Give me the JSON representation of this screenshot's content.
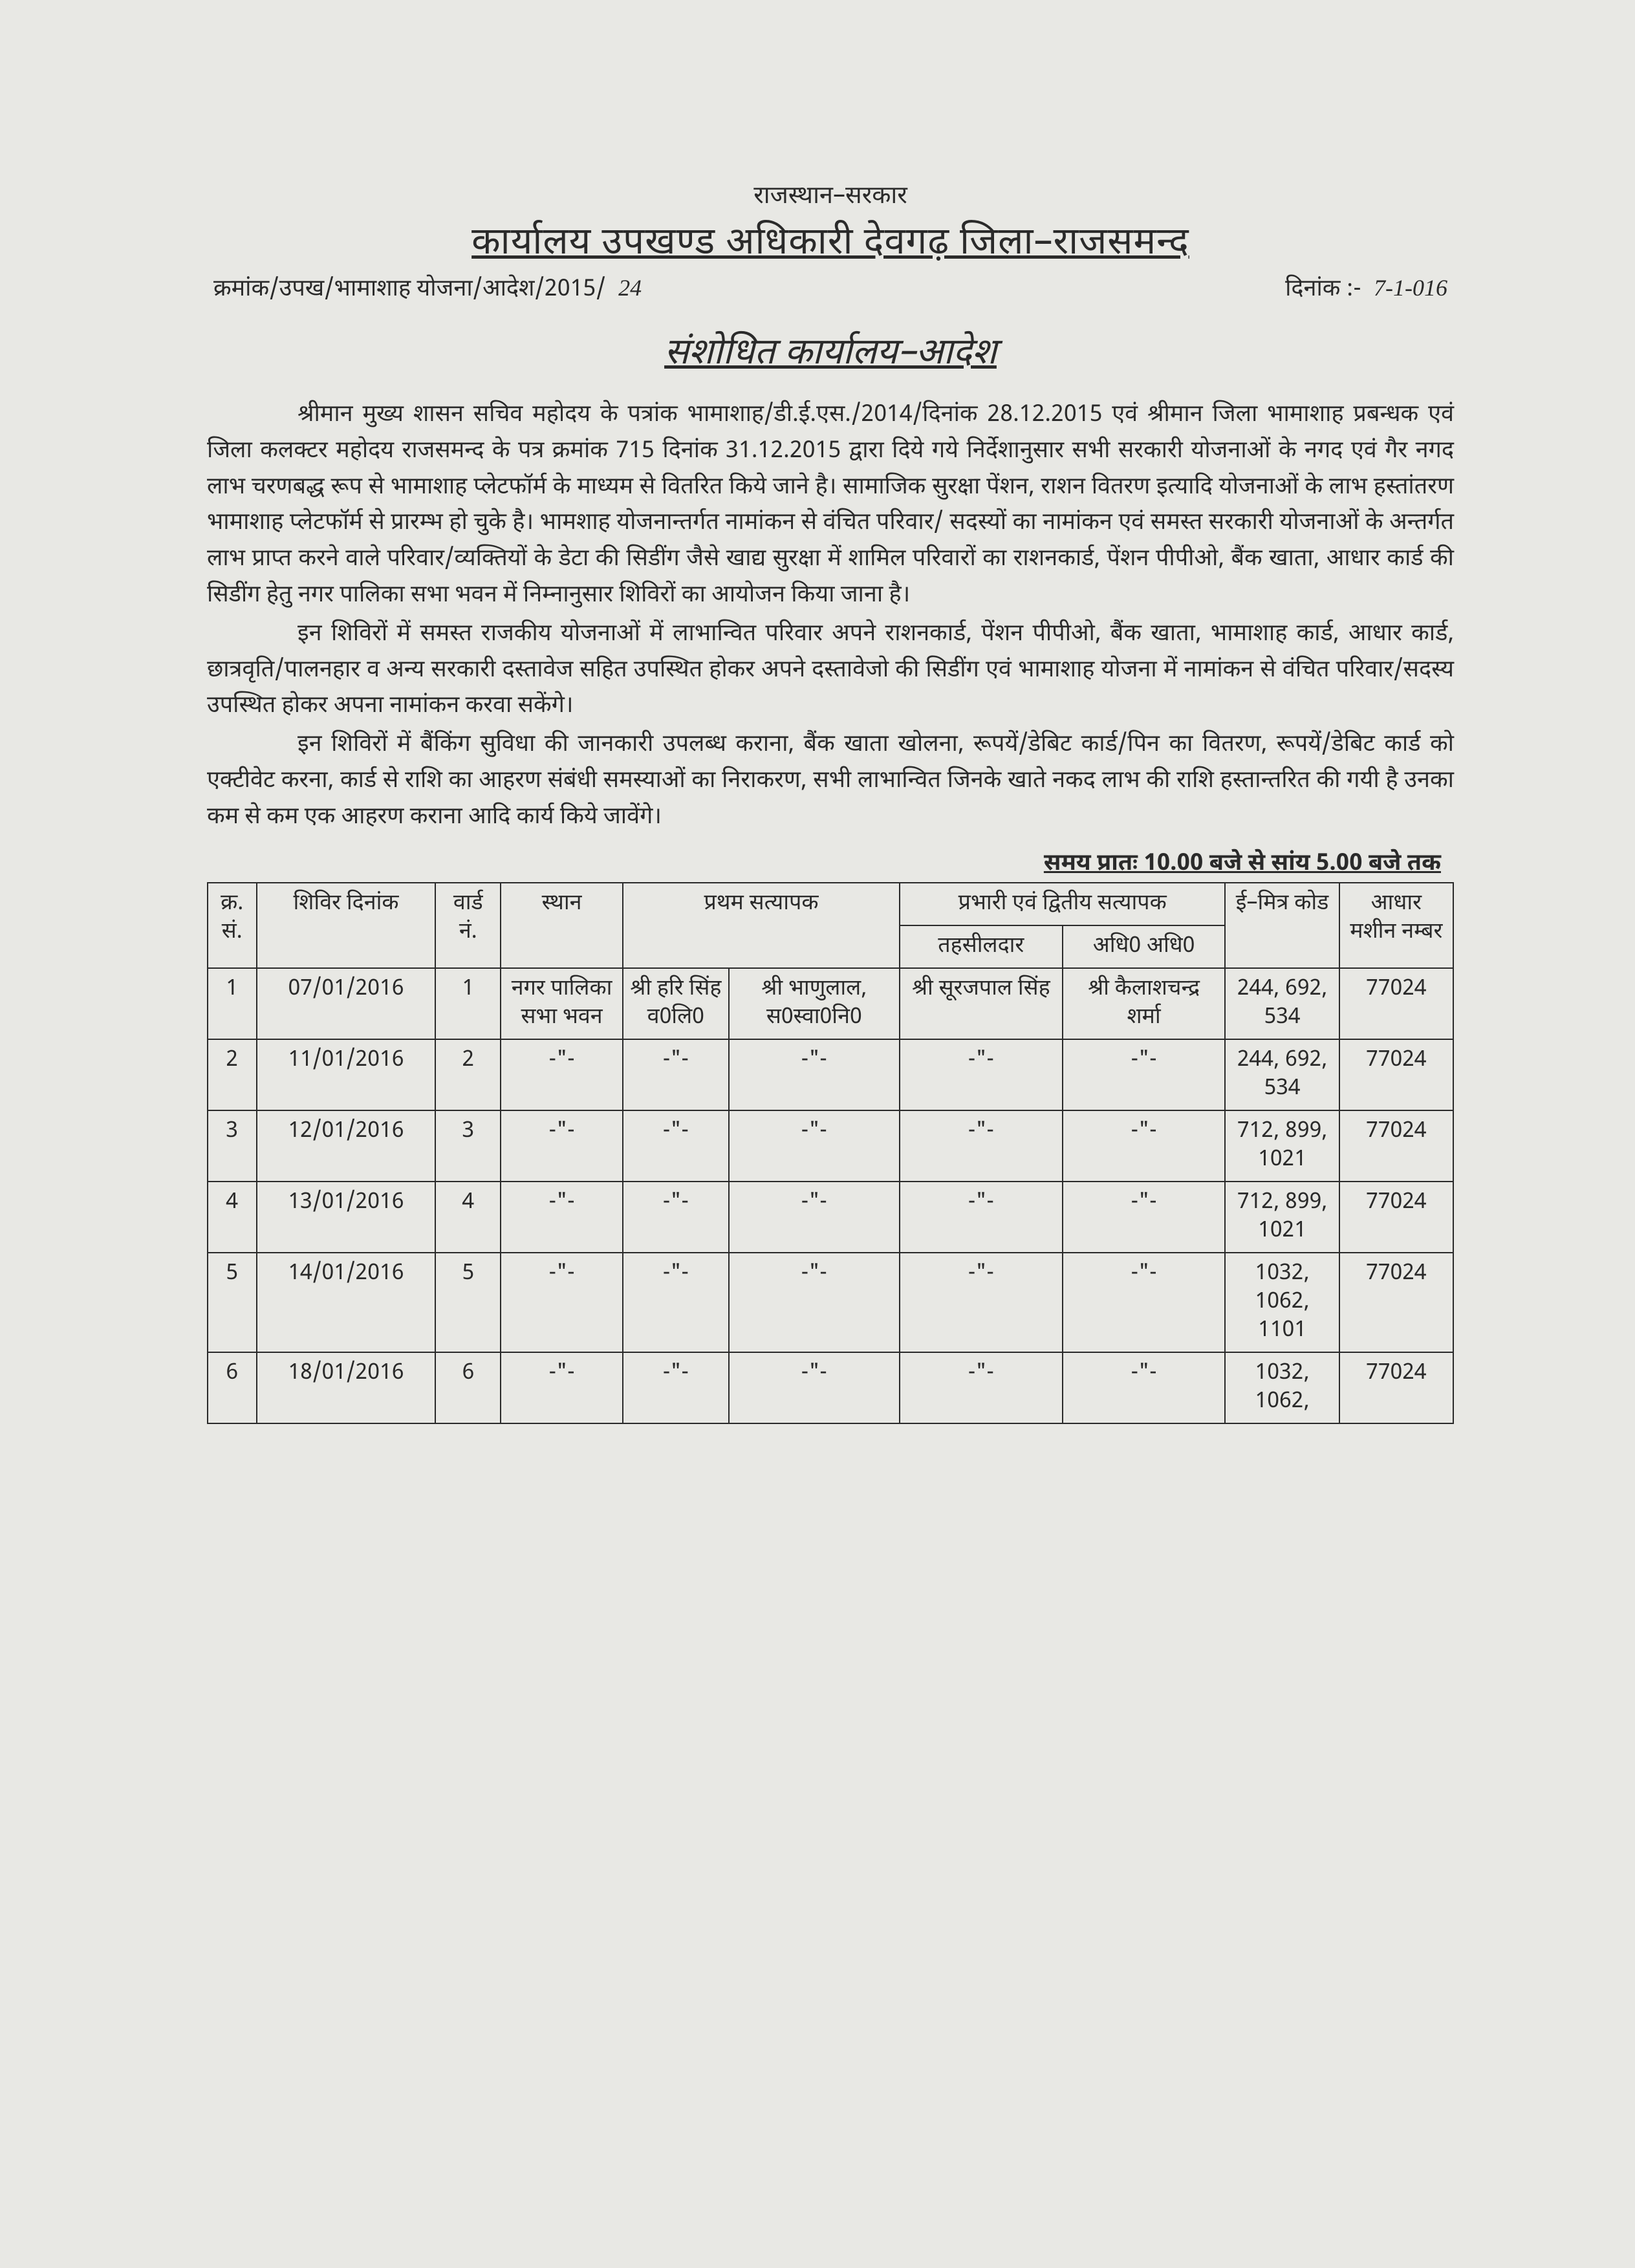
{
  "header": {
    "state": "राजस्थान–सरकार",
    "office": "कार्यालय उपखण्ड अधिकारी देवगढ़ जिला–राजसमन्द",
    "ref_prefix": "क्रमांक/उपख/भामाशाह योजना/आदेश/2015/",
    "ref_number": "24",
    "date_label": "दिनांक :-",
    "date_value": "7-1-016"
  },
  "order_title": "संशोधित कार्यालय–आदेश",
  "paragraphs": [
    "श्रीमान मुख्य शासन सचिव महोदय के पत्रांक भामाशाह/डी.ई.एस./2014/दिनांक 28.12.2015 एवं श्रीमान जिला भामाशाह प्रबन्धक एवं जिला कलक्टर महोदय राजसमन्द के पत्र क्रमांक 715 दिनांक 31.12.2015 द्वारा दिये गये निर्देशानुसार सभी सरकारी योजनाओं के नगद एवं गैर नगद लाभ चरणबद्ध रूप से भामाशाह प्लेटफॉर्म के माध्यम से वितरित किये जाने है। सामाजिक सुरक्षा पेंशन, राशन वितरण इत्यादि योजनाओं के लाभ हस्तांतरण भामाशाह प्लेटफॉर्म से प्रारम्भ हो चुके है। भामशाह योजनान्तर्गत नामांकन से वंचित परिवार/ सदस्यों का नामांकन एवं समस्त सरकारी योजनाओं के अन्तर्गत लाभ प्राप्त करने वाले परिवार/व्यक्तियों के डेटा की सिडींग जैसे खाद्य सुरक्षा में शामिल परिवारों का राशनकार्ड, पेंशन पीपीओ, बैंक खाता, आधार कार्ड की सिडींग हेतु नगर पालिका सभा भवन में निम्नानुसार शिविरों का आयोजन किया जाना है।",
    "इन शिविरों में समस्त राजकीय योजनाओं में लाभान्वित परिवार अपने राशनकार्ड, पेंशन पीपीओ, बैंक खाता, भामाशाह कार्ड, आधार कार्ड, छात्रवृति/पालनहार व अन्य सरकारी दस्तावेज सहित उपस्थित होकर अपने दस्तावेजो की सिडींग एवं भामाशाह योजना में नामांकन से वंचित परिवार/सदस्य उपस्थित होकर अपना नामांकन करवा सकेंगे।",
    "इन शिविरों में बैंकिंग सुविधा की जानकारी उपलब्ध कराना, बैंक खाता खोलना, रूपयें/डेबिट कार्ड/पिन का वितरण, रूपयें/डेबिट कार्ड को एक्टीवेट करना, कार्ड से राशि का आहरण संबंधी समस्याओं का निराकरण, सभी लाभान्वित जिनके खाते नकद लाभ की राशि हस्तान्तरित की गयी है उनका कम से कम एक आहरण कराना आदि कार्य किये जावेंगे।"
  ],
  "time_note": "समय प्रातः 10.00 बजे से सांय 5.00 बजे तक",
  "table": {
    "headers": {
      "sn": "क्र. सं.",
      "date": "शिविर दिनांक",
      "ward": "वार्ड नं.",
      "place": "स्थान",
      "verifier1": "प्रथम सत्यापक",
      "verifier2_main": "प्रभारी एवं द्वितीय सत्यापक",
      "verifier2_a": "तहसीलदार",
      "verifier2_b": "अधि0 अधि0",
      "emitra": "ई–मित्र कोड",
      "aadhar": "आधार मशीन नम्बर"
    },
    "ditto": "-\"-",
    "rows": [
      {
        "sn": "1",
        "date": "07/01/2016",
        "ward": "1",
        "place": "नगर पालिका सभा भवन",
        "v1a": "श्री हरि सिंह व0लि0",
        "v1b": "श्री भाणुलाल, स0स्वा0नि0",
        "v2a": "श्री सूरजपाल सिंह",
        "v2b": "श्री कैलाशचन्द्र शर्मा",
        "emitra": "244, 692, 534",
        "aadhar": "77024"
      },
      {
        "sn": "2",
        "date": "11/01/2016",
        "ward": "2",
        "place": "-\"-",
        "v1a": "-\"-",
        "v1b": "-\"-",
        "v2a": "-\"-",
        "v2b": "-\"-",
        "emitra": "244, 692, 534",
        "aadhar": "77024"
      },
      {
        "sn": "3",
        "date": "12/01/2016",
        "ward": "3",
        "place": "-\"-",
        "v1a": "-\"-",
        "v1b": "-\"-",
        "v2a": "-\"-",
        "v2b": "-\"-",
        "emitra": "712, 899, 1021",
        "aadhar": "77024"
      },
      {
        "sn": "4",
        "date": "13/01/2016",
        "ward": "4",
        "place": "-\"-",
        "v1a": "-\"-",
        "v1b": "-\"-",
        "v2a": "-\"-",
        "v2b": "-\"-",
        "emitra": "712, 899, 1021",
        "aadhar": "77024"
      },
      {
        "sn": "5",
        "date": "14/01/2016",
        "ward": "5",
        "place": "-\"-",
        "v1a": "-\"-",
        "v1b": "-\"-",
        "v2a": "-\"-",
        "v2b": "-\"-",
        "emitra": "1032, 1062, 1101",
        "aadhar": "77024"
      },
      {
        "sn": "6",
        "date": "18/01/2016",
        "ward": "6",
        "place": "-\"-",
        "v1a": "-\"-",
        "v1b": "-\"-",
        "v2a": "-\"-",
        "v2b": "-\"-",
        "emitra": "1032, 1062,",
        "aadhar": "77024"
      }
    ]
  }
}
